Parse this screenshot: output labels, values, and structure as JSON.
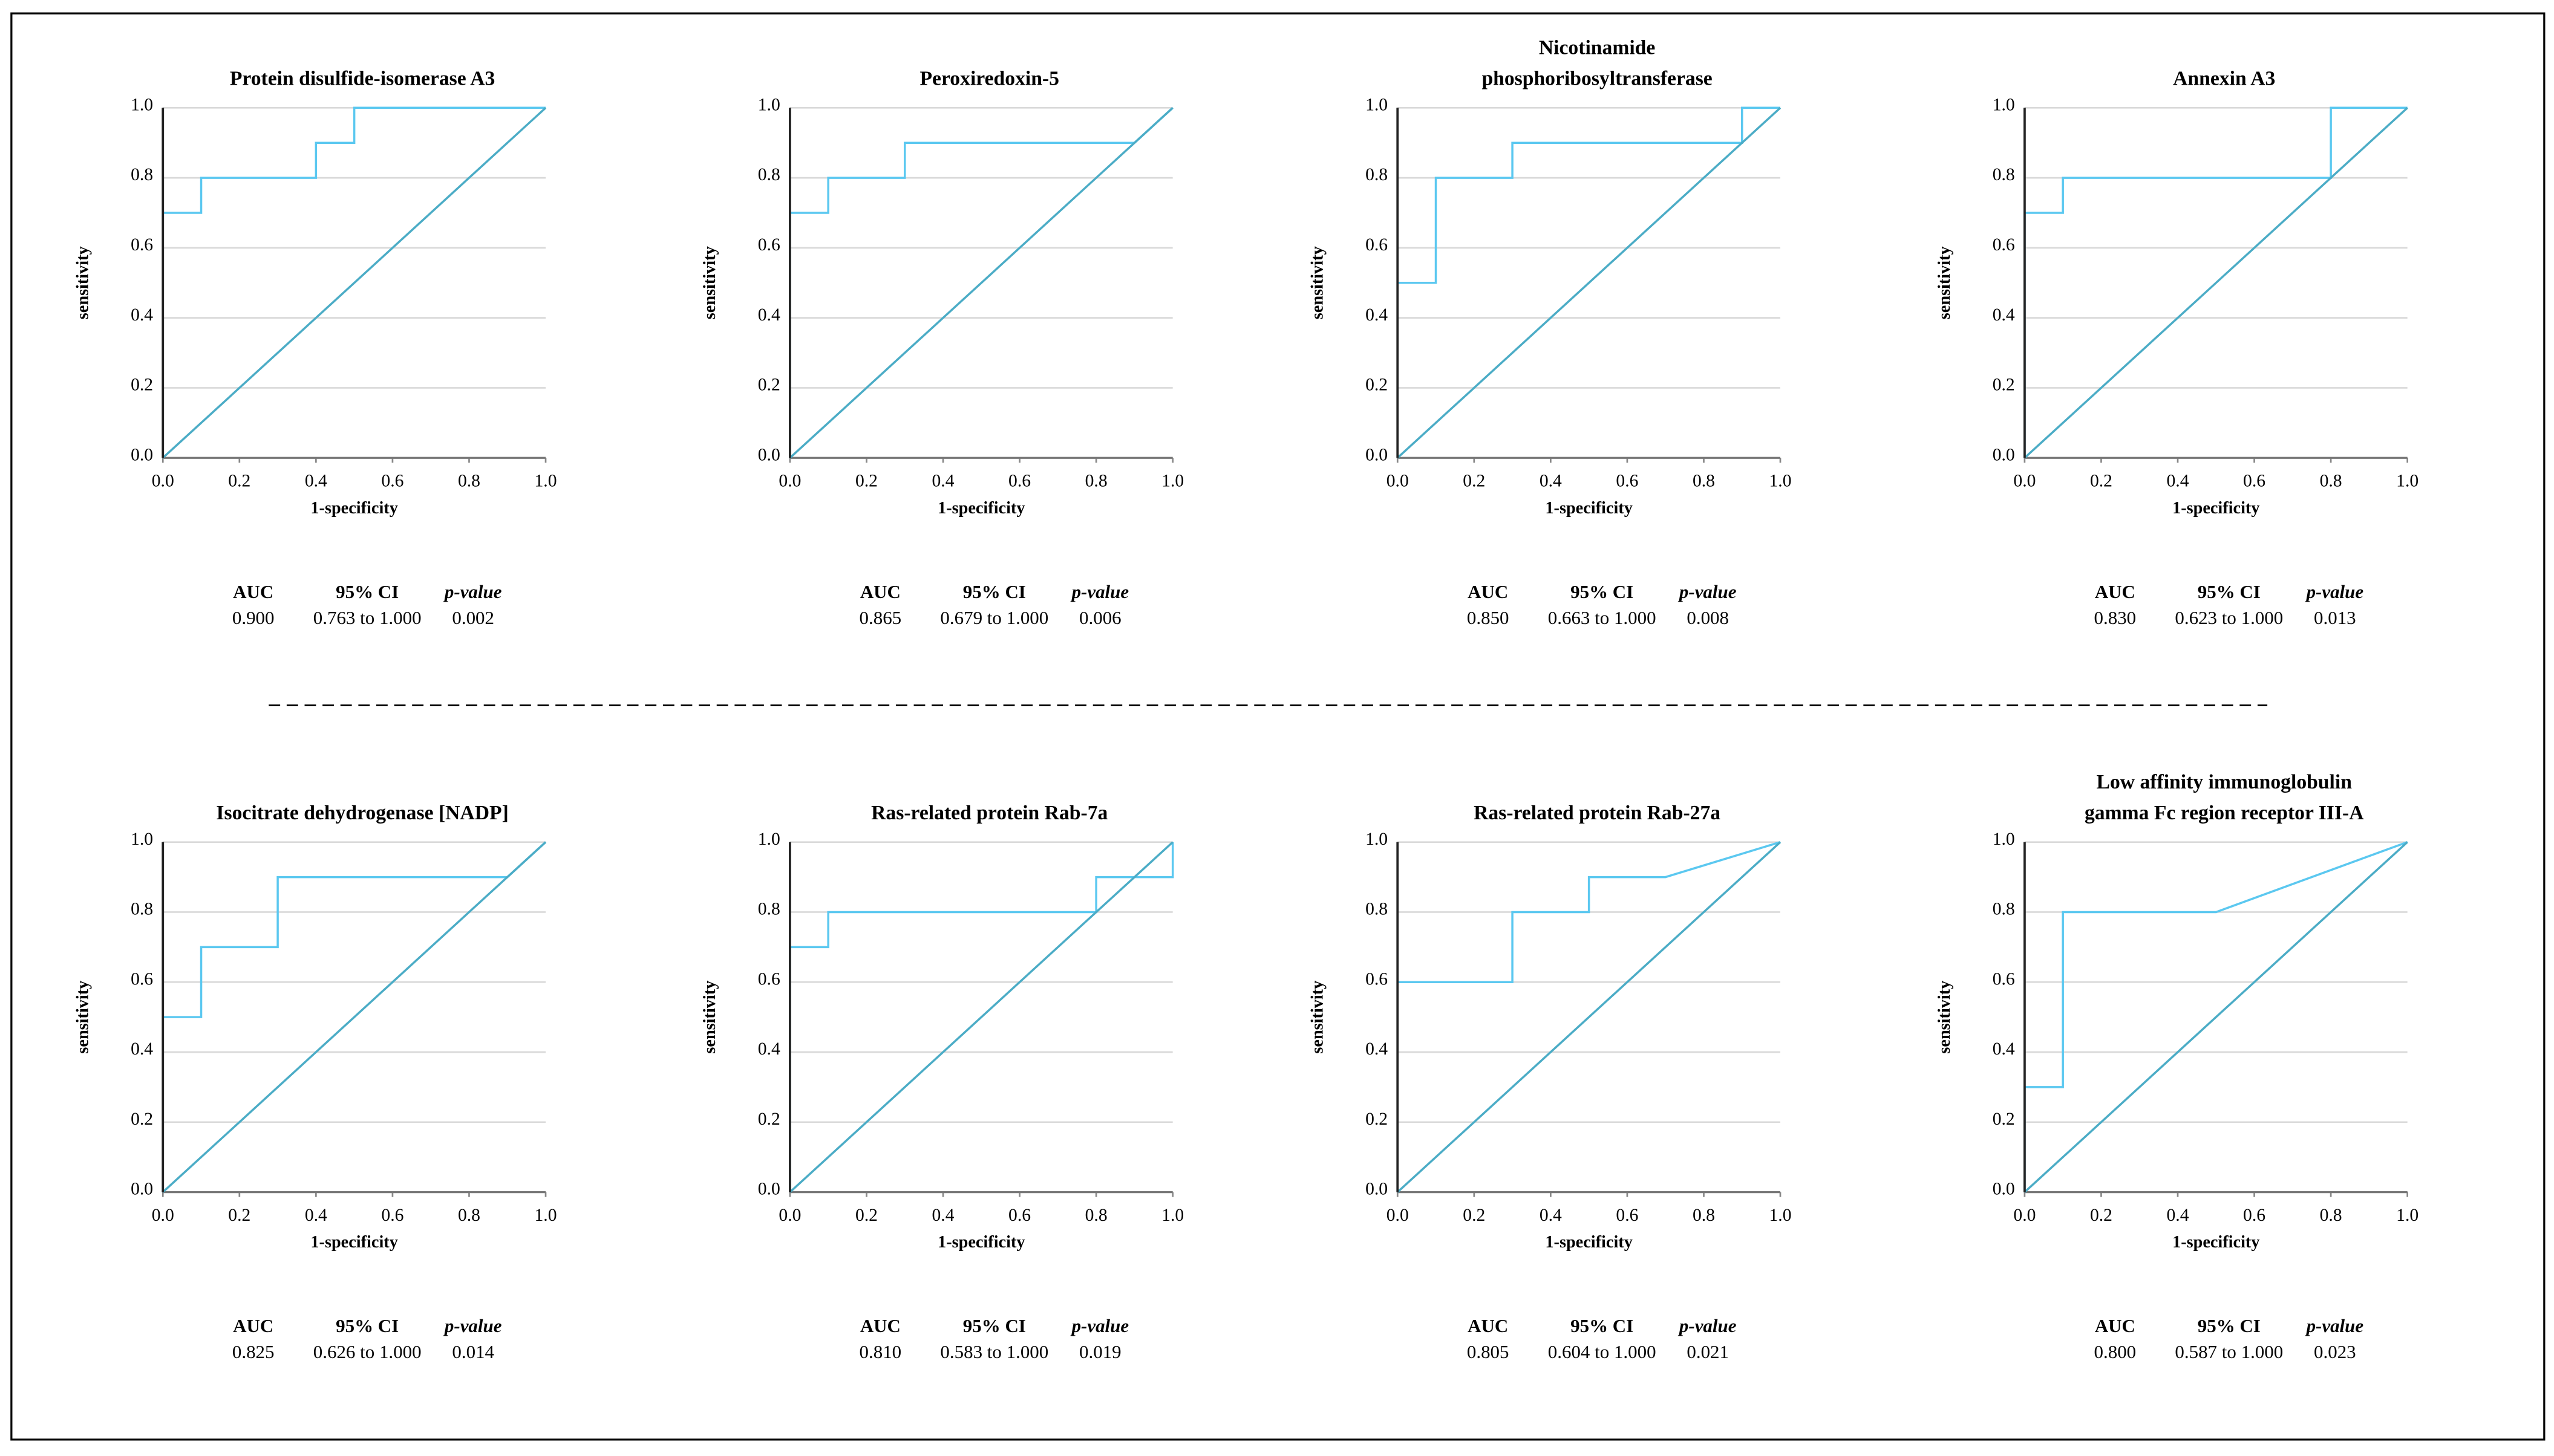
{
  "chart_data": [
    {
      "type": "line",
      "title": [
        "Protein disulfide-isomerase A3"
      ],
      "xlabel": "1-specificity",
      "ylabel": "sensitivity",
      "xlim": [
        0,
        1
      ],
      "ylim": [
        0,
        1
      ],
      "xticks": [
        {
          "value": 0,
          "label": "0.0"
        },
        0.2,
        0.4,
        0.6,
        0.8,
        {
          "value": 1,
          "label": "1.0"
        }
      ],
      "yticks": [
        {
          "value": 0,
          "label": "0.0"
        },
        0.2,
        0.4,
        0.6,
        0.8,
        {
          "value": 1,
          "label": "1.0"
        }
      ],
      "grid": true,
      "series": [
        {
          "color": "#5bc8f0",
          "x": [
            0,
            0,
            0.1,
            0.1,
            0.4,
            0.4,
            0.5,
            0.5,
            1
          ],
          "values": [
            0,
            0.7,
            0.7,
            0.8,
            0.8,
            0.9,
            0.9,
            1,
            1
          ]
        },
        {
          "color": "#4bacc6",
          "x": [
            0,
            1
          ],
          "values": [
            0,
            1
          ]
        }
      ],
      "stats": {
        "headers": [
          "AUC",
          "95% CI",
          "p-value"
        ],
        "values": [
          "0.900",
          "0.763 to 1.000",
          "0.002"
        ]
      }
    },
    {
      "type": "line",
      "title": [
        "Peroxiredoxin-5"
      ],
      "xlabel": "1-specificity",
      "ylabel": "sensitivity",
      "xlim": [
        0,
        1
      ],
      "ylim": [
        0,
        1
      ],
      "xticks": [
        {
          "value": 0,
          "label": "0.0"
        },
        0.2,
        0.4,
        0.6,
        0.8,
        {
          "value": 1,
          "label": "1.0"
        }
      ],
      "yticks": [
        {
          "value": 0,
          "label": "0.0"
        },
        0.2,
        0.4,
        0.6,
        0.8,
        {
          "value": 1,
          "label": "1.0"
        }
      ],
      "grid": true,
      "series": [
        {
          "color": "#5bc8f0",
          "x": [
            0,
            0,
            0.1,
            0.1,
            0.3,
            0.3,
            0.9,
            1
          ],
          "values": [
            0,
            0.7,
            0.7,
            0.8,
            0.8,
            0.9,
            0.9,
            1
          ]
        },
        {
          "color": "#4bacc6",
          "x": [
            0,
            1
          ],
          "values": [
            0,
            1
          ]
        }
      ],
      "stats": {
        "headers": [
          "AUC",
          "95% CI",
          "p-value"
        ],
        "values": [
          "0.865",
          "0.679 to 1.000",
          "0.006"
        ]
      }
    },
    {
      "type": "line",
      "title": [
        "Nicotinamide",
        "phosphoribosyltransferase"
      ],
      "xlabel": "1-specificity",
      "ylabel": "sensitivity",
      "xlim": [
        0,
        1
      ],
      "ylim": [
        0,
        1
      ],
      "xticks": [
        {
          "value": 0,
          "label": "0.0"
        },
        0.2,
        0.4,
        0.6,
        0.8,
        {
          "value": 1,
          "label": "1.0"
        }
      ],
      "yticks": [
        {
          "value": 0,
          "label": "0.0"
        },
        0.2,
        0.4,
        0.6,
        0.8,
        {
          "value": 1,
          "label": "1.0"
        }
      ],
      "grid": true,
      "series": [
        {
          "color": "#5bc8f0",
          "x": [
            0,
            0,
            0.1,
            0.1,
            0.3,
            0.3,
            0.9,
            0.9,
            1
          ],
          "values": [
            0,
            0.5,
            0.5,
            0.8,
            0.8,
            0.9,
            0.9,
            1,
            1
          ]
        },
        {
          "color": "#4bacc6",
          "x": [
            0,
            1
          ],
          "values": [
            0,
            1
          ]
        }
      ],
      "stats": {
        "headers": [
          "AUC",
          "95% CI",
          "p-value"
        ],
        "values": [
          "0.850",
          "0.663 to 1.000",
          "0.008"
        ]
      }
    },
    {
      "type": "line",
      "title": [
        "Annexin A3"
      ],
      "xlabel": "1-specificity",
      "ylabel": "sensitivity",
      "xlim": [
        0,
        1
      ],
      "ylim": [
        0,
        1
      ],
      "xticks": [
        {
          "value": 0,
          "label": "0.0"
        },
        0.2,
        0.4,
        0.6,
        0.8,
        {
          "value": 1,
          "label": "1.0"
        }
      ],
      "yticks": [
        {
          "value": 0,
          "label": "0.0"
        },
        0.2,
        0.4,
        0.6,
        0.8,
        {
          "value": 1,
          "label": "1.0"
        }
      ],
      "grid": true,
      "series": [
        {
          "color": "#5bc8f0",
          "x": [
            0,
            0,
            0.1,
            0.1,
            0.8,
            0.8,
            1
          ],
          "values": [
            0,
            0.7,
            0.7,
            0.8,
            0.8,
            1,
            1
          ]
        },
        {
          "color": "#4bacc6",
          "x": [
            0,
            1
          ],
          "values": [
            0,
            1
          ]
        }
      ],
      "stats": {
        "headers": [
          "AUC",
          "95% CI",
          "p-value"
        ],
        "values": [
          "0.830",
          "0.623 to 1.000",
          "0.013"
        ]
      }
    },
    {
      "type": "line",
      "title": [
        "Isocitrate dehydrogenase [NADP]"
      ],
      "xlabel": "1-specificity",
      "ylabel": "sensitivity",
      "xlim": [
        0,
        1
      ],
      "ylim": [
        0,
        1
      ],
      "xticks": [
        {
          "value": 0,
          "label": "0.0"
        },
        0.2,
        0.4,
        0.6,
        0.8,
        {
          "value": 1,
          "label": "1.0"
        }
      ],
      "yticks": [
        {
          "value": 0,
          "label": "0.0"
        },
        0.2,
        0.4,
        0.6,
        0.8,
        {
          "value": 1,
          "label": "1.0"
        }
      ],
      "grid": true,
      "series": [
        {
          "color": "#5bc8f0",
          "x": [
            0,
            0,
            0.1,
            0.1,
            0.3,
            0.3,
            0.9,
            1
          ],
          "values": [
            0,
            0.5,
            0.5,
            0.7,
            0.7,
            0.9,
            0.9,
            1
          ]
        },
        {
          "color": "#4bacc6",
          "x": [
            0,
            1
          ],
          "values": [
            0,
            1
          ]
        }
      ],
      "stats": {
        "headers": [
          "AUC",
          "95% CI",
          "p-value"
        ],
        "values": [
          "0.825",
          "0.626 to 1.000",
          "0.014"
        ]
      }
    },
    {
      "type": "line",
      "title": [
        "Ras-related protein Rab-7a"
      ],
      "xlabel": "1-specificity",
      "ylabel": "sensitivity",
      "xlim": [
        0,
        1
      ],
      "ylim": [
        0,
        1
      ],
      "xticks": [
        {
          "value": 0,
          "label": "0.0"
        },
        0.2,
        0.4,
        0.6,
        0.8,
        {
          "value": 1,
          "label": "1.0"
        }
      ],
      "yticks": [
        {
          "value": 0,
          "label": "0.0"
        },
        0.2,
        0.4,
        0.6,
        0.8,
        {
          "value": 1,
          "label": "1.0"
        }
      ],
      "grid": true,
      "series": [
        {
          "color": "#5bc8f0",
          "x": [
            0,
            0,
            0.1,
            0.1,
            0.8,
            0.8,
            1,
            1
          ],
          "values": [
            0,
            0.7,
            0.7,
            0.8,
            0.8,
            0.9,
            0.9,
            1
          ]
        },
        {
          "color": "#4bacc6",
          "x": [
            0,
            1
          ],
          "values": [
            0,
            1
          ]
        }
      ],
      "stats": {
        "headers": [
          "AUC",
          "95% CI",
          "p-value"
        ],
        "values": [
          "0.810",
          "0.583 to 1.000",
          "0.019"
        ]
      }
    },
    {
      "type": "line",
      "title": [
        "Ras-related protein Rab-27a"
      ],
      "xlabel": "1-specificity",
      "ylabel": "sensitivity",
      "xlim": [
        0,
        1
      ],
      "ylim": [
        0,
        1
      ],
      "xticks": [
        {
          "value": 0,
          "label": "0.0"
        },
        0.2,
        0.4,
        0.6,
        0.8,
        {
          "value": 1,
          "label": "1.0"
        }
      ],
      "yticks": [
        {
          "value": 0,
          "label": "0.0"
        },
        0.2,
        0.4,
        0.6,
        0.8,
        {
          "value": 1,
          "label": "1.0"
        }
      ],
      "grid": true,
      "series": [
        {
          "color": "#5bc8f0",
          "x": [
            0,
            0,
            0.3,
            0.3,
            0.5,
            0.5,
            0.7,
            1
          ],
          "values": [
            0,
            0.6,
            0.6,
            0.8,
            0.8,
            0.9,
            0.9,
            1
          ]
        },
        {
          "color": "#4bacc6",
          "x": [
            0,
            1
          ],
          "values": [
            0,
            1
          ]
        }
      ],
      "stats": {
        "headers": [
          "AUC",
          "95% CI",
          "p-value"
        ],
        "values": [
          "0.805",
          "0.604 to 1.000",
          "0.021"
        ]
      }
    },
    {
      "type": "line",
      "title": [
        "Low affinity immunoglobulin",
        "gamma Fc region receptor III-A"
      ],
      "xlabel": "1-specificity",
      "ylabel": "sensitivity",
      "xlim": [
        0,
        1
      ],
      "ylim": [
        0,
        1
      ],
      "xticks": [
        {
          "value": 0,
          "label": "0.0"
        },
        0.2,
        0.4,
        0.6,
        0.8,
        {
          "value": 1,
          "label": "1.0"
        }
      ],
      "yticks": [
        {
          "value": 0,
          "label": "0.0"
        },
        0.2,
        0.4,
        0.6,
        0.8,
        {
          "value": 1,
          "label": "1.0"
        }
      ],
      "grid": true,
      "series": [
        {
          "color": "#5bc8f0",
          "x": [
            0,
            0,
            0.1,
            0.1,
            0.5,
            1
          ],
          "values": [
            0,
            0.3,
            0.3,
            0.8,
            0.8,
            1
          ]
        },
        {
          "color": "#4bacc6",
          "x": [
            0,
            1
          ],
          "values": [
            0,
            1
          ]
        }
      ],
      "stats": {
        "headers": [
          "AUC",
          "95% CI",
          "p-value"
        ],
        "values": [
          "0.800",
          "0.587 to 1.000",
          "0.023"
        ]
      }
    }
  ]
}
